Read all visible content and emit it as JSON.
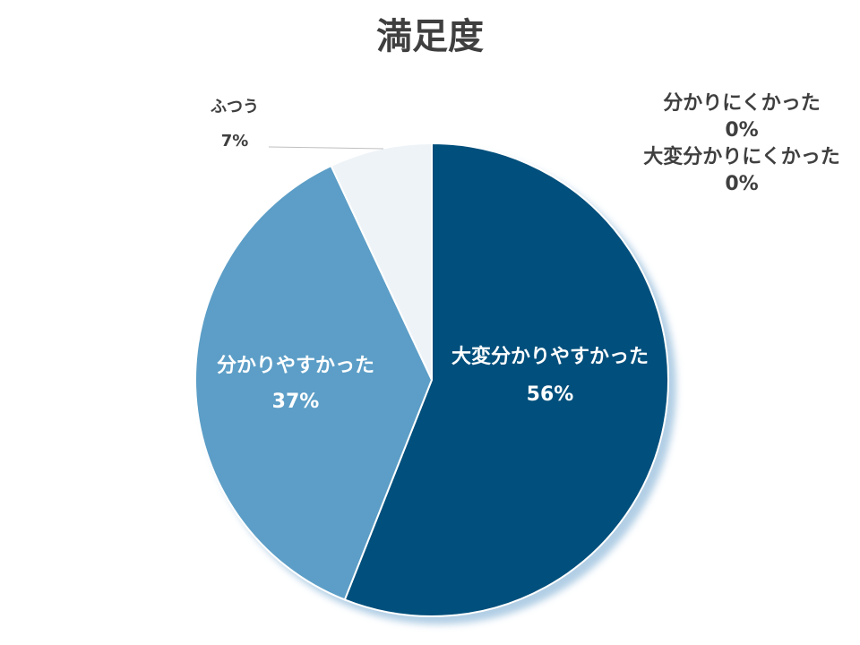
{
  "chart_data": {
    "type": "pie",
    "title": "満足度",
    "categories": [
      "大変分かりやすかった",
      "分かりやすかった",
      "ふつう",
      "分かりにくかった",
      "大変分かりにくかった"
    ],
    "values": [
      56,
      37,
      7,
      0,
      0
    ],
    "value_labels": [
      "56%",
      "37%",
      "7%",
      "0%",
      "0%"
    ],
    "colors": [
      "#004f7b",
      "#5b9ec7",
      "#eef3f7",
      "#c9dbe8",
      "#a8c6dc"
    ],
    "label_color_inside": "#ffffff",
    "label_color_outside": "#3f3f3f",
    "leader_line_color": "#bfbfbf"
  }
}
